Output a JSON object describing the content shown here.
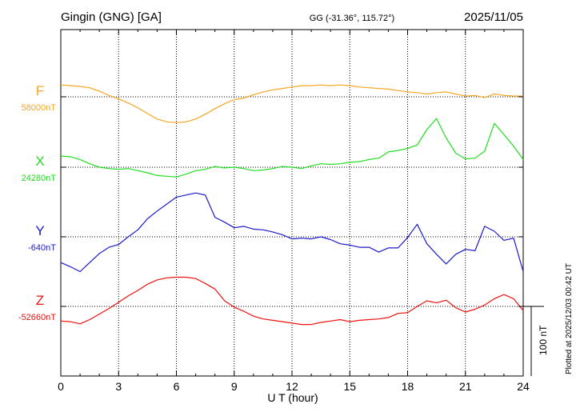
{
  "header": {
    "station": "Gingin (GNG)  [GA]",
    "coords": "GG (-31.36°, 115.72°)",
    "date": "2025/11/05"
  },
  "footer": {
    "scale_label": "100 nT",
    "plotted": "Plotted at 2025/12/03 00:42 UT"
  },
  "chart_data": {
    "type": "line",
    "xlabel": "U T (hour)",
    "xlim": [
      0,
      24
    ],
    "xticks": [
      0,
      3,
      6,
      9,
      15,
      18,
      21,
      24
    ],
    "xtick_labels": [
      "0",
      "3",
      "6",
      "9",
      "15",
      "18",
      "21",
      "24"
    ],
    "extra_xticks": [
      12
    ],
    "extra_xtick_labels": [
      "12"
    ],
    "grid": true,
    "scale_nT": 100,
    "series": [
      {
        "name": "F",
        "baseline_label": "58000nT",
        "baseline": 58000,
        "color": "#f5a623",
        "x": [
          0,
          0.5,
          1,
          1.5,
          2,
          2.5,
          3,
          3.5,
          4,
          4.5,
          5,
          5.5,
          6,
          6.5,
          7,
          7.5,
          8,
          8.5,
          9,
          9.5,
          10,
          10.5,
          11,
          11.5,
          12,
          12.5,
          13,
          13.5,
          14,
          14.5,
          15,
          15.5,
          16,
          16.5,
          17,
          17.5,
          18,
          18.5,
          19,
          19.5,
          20,
          20.5,
          21,
          21.5,
          22,
          22.5,
          23,
          23.5,
          24
        ],
        "y": [
          58017,
          58016,
          58015,
          58013,
          58008,
          58002,
          57997,
          57991,
          57984,
          57976,
          57968,
          57964,
          57963,
          57964,
          57968,
          57975,
          57983,
          57990,
          57996,
          57998,
          58003,
          58007,
          58010,
          58012,
          58014,
          58016,
          58016,
          58017,
          58016,
          58017,
          58016,
          58014,
          58013,
          58012,
          58011,
          58009,
          58007,
          58006,
          58004,
          58006,
          58007,
          58004,
          58001,
          58002,
          57999,
          58004,
          58002,
          58001,
          58001
        ]
      },
      {
        "name": "X",
        "baseline_label": "24280nT",
        "baseline": 24280,
        "color": "#22dd22",
        "x": [
          0,
          0.5,
          1,
          1.5,
          2,
          2.5,
          3,
          3.5,
          4,
          4.5,
          5,
          5.5,
          6,
          6.5,
          7,
          7.5,
          8,
          8.5,
          9,
          9.5,
          10,
          10.5,
          11,
          11.5,
          12,
          12.5,
          13,
          13.5,
          14,
          14.5,
          15,
          15.5,
          16,
          16.5,
          17,
          17.5,
          18,
          18.5,
          19,
          19.5,
          20,
          20.5,
          21,
          21.5,
          22,
          22.5,
          23,
          23.5,
          24
        ],
        "y": [
          24296,
          24295,
          24291,
          24285,
          24280,
          24278,
          24277,
          24278,
          24275,
          24272,
          24268,
          24267,
          24266,
          24270,
          24275,
          24277,
          24281,
          24279,
          24280,
          24278,
          24275,
          24276,
          24278,
          24281,
          24280,
          24278,
          24282,
          24285,
          24284,
          24285,
          24287,
          24288,
          24291,
          24293,
          24302,
          24304,
          24307,
          24312,
          24334,
          24350,
          24322,
          24300,
          24292,
          24293,
          24303,
          24343,
          24327,
          24310,
          24291
        ]
      },
      {
        "name": "Y",
        "baseline_label": "-640nT",
        "baseline": -640,
        "color": "#1a1acc",
        "x": [
          0,
          0.5,
          1,
          1.5,
          2,
          2.5,
          3,
          3.5,
          4,
          4.5,
          5,
          5.5,
          6,
          6.5,
          7,
          7.5,
          8,
          8.5,
          9,
          9.5,
          10,
          10.5,
          11,
          11.5,
          12,
          12.5,
          13,
          13.5,
          14,
          14.5,
          15,
          15.5,
          16,
          16.5,
          17,
          17.5,
          18,
          18.5,
          19,
          19.5,
          20,
          20.5,
          21,
          21.5,
          22,
          22.5,
          23,
          23.5,
          24
        ],
        "y": [
          -677,
          -683,
          -690,
          -677,
          -664,
          -655,
          -651,
          -640,
          -630,
          -614,
          -603,
          -593,
          -583,
          -580,
          -577,
          -580,
          -612,
          -619,
          -627,
          -625,
          -629,
          -630,
          -633,
          -637,
          -643,
          -642,
          -643,
          -640,
          -644,
          -650,
          -652,
          -655,
          -655,
          -662,
          -656,
          -656,
          -641,
          -622,
          -650,
          -665,
          -679,
          -665,
          -658,
          -660,
          -625,
          -632,
          -645,
          -642,
          -690
        ]
      },
      {
        "name": "Z",
        "baseline_label": "-52660nT",
        "baseline": -52660,
        "color": "#ee1111",
        "x": [
          0,
          0.5,
          1,
          1.5,
          2,
          2.5,
          3,
          3.5,
          4,
          4.5,
          5,
          5.5,
          6,
          6.5,
          7,
          7.5,
          8,
          8.5,
          9,
          9.5,
          10,
          10.5,
          11,
          11.5,
          12,
          12.5,
          13,
          13.5,
          14,
          14.5,
          15,
          15.5,
          16,
          16.5,
          17,
          17.5,
          18,
          18.5,
          19,
          19.5,
          20,
          20.5,
          21,
          21.5,
          22,
          22.5,
          23,
          23.5,
          24
        ],
        "y": [
          -52681,
          -52682,
          -52685,
          -52679,
          -52671,
          -52663,
          -52654,
          -52645,
          -52637,
          -52628,
          -52622,
          -52619,
          -52618,
          -52618,
          -52620,
          -52627,
          -52635,
          -52652,
          -52661,
          -52667,
          -52674,
          -52678,
          -52680,
          -52682,
          -52684,
          -52686,
          -52686,
          -52683,
          -52681,
          -52679,
          -52682,
          -52680,
          -52679,
          -52678,
          -52676,
          -52670,
          -52669,
          -52660,
          -52652,
          -52655,
          -52651,
          -52662,
          -52668,
          -52664,
          -52658,
          -52649,
          -52643,
          -52649,
          -52666
        ]
      }
    ]
  }
}
